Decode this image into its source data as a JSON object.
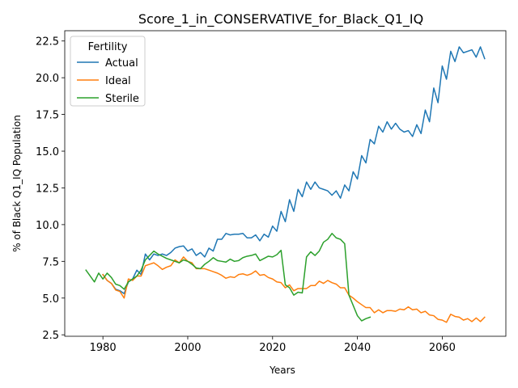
{
  "chart_data": {
    "type": "line",
    "title": "Score_1_in_CONSERVATIVE_for_Black_Q1_IQ",
    "xlabel": "Years",
    "ylabel": "% of Black Q1_IQ Population",
    "xlim": [
      1971,
      2075
    ],
    "ylim": [
      2.4,
      23.2
    ],
    "xticks": [
      1980,
      2000,
      2020,
      2040,
      2060
    ],
    "yticks": [
      2.5,
      5.0,
      7.5,
      10.0,
      12.5,
      15.0,
      17.5,
      20.0,
      22.5
    ],
    "ytick_labels": [
      "2.5",
      "5.0",
      "7.5",
      "10.0",
      "12.5",
      "15.0",
      "17.5",
      "20.0",
      "22.5"
    ],
    "grid": false,
    "legend": {
      "title": "Fertility",
      "placement": "top-left"
    },
    "series": [
      {
        "name": "Actual",
        "color": "#1f77b4",
        "points": [
          [
            1980,
            6.6
          ],
          [
            1981,
            6.2
          ],
          [
            1982,
            6.0
          ],
          [
            1983,
            5.6
          ],
          [
            1984,
            5.5
          ],
          [
            1985,
            5.3
          ],
          [
            1986,
            6.1
          ],
          [
            1987,
            6.3
          ],
          [
            1988,
            6.9
          ],
          [
            1989,
            6.6
          ],
          [
            1990,
            8.0
          ],
          [
            1991,
            7.6
          ],
          [
            1992,
            8.0
          ],
          [
            1993,
            7.9
          ],
          [
            1994,
            8.0
          ],
          [
            1995,
            7.9
          ],
          [
            1996,
            8.1
          ],
          [
            1997,
            8.4
          ],
          [
            1998,
            8.5
          ],
          [
            1999,
            8.55
          ],
          [
            2000,
            8.2
          ],
          [
            2001,
            8.35
          ],
          [
            2002,
            7.9
          ],
          [
            2003,
            8.1
          ],
          [
            2004,
            7.8
          ],
          [
            2005,
            8.4
          ],
          [
            2006,
            8.2
          ],
          [
            2007,
            9.0
          ],
          [
            2008,
            9.0
          ],
          [
            2009,
            9.4
          ],
          [
            2010,
            9.3
          ],
          [
            2011,
            9.35
          ],
          [
            2012,
            9.35
          ],
          [
            2013,
            9.4
          ],
          [
            2014,
            9.1
          ],
          [
            2015,
            9.1
          ],
          [
            2016,
            9.3
          ],
          [
            2017,
            8.9
          ],
          [
            2018,
            9.35
          ],
          [
            2019,
            9.15
          ],
          [
            2020,
            9.9
          ],
          [
            2021,
            9.55
          ],
          [
            2022,
            10.9
          ],
          [
            2023,
            10.2
          ],
          [
            2024,
            11.7
          ],
          [
            2025,
            10.9
          ],
          [
            2026,
            12.4
          ],
          [
            2027,
            11.9
          ],
          [
            2028,
            12.9
          ],
          [
            2029,
            12.4
          ],
          [
            2030,
            12.9
          ],
          [
            2031,
            12.5
          ],
          [
            2032,
            12.4
          ],
          [
            2033,
            12.3
          ],
          [
            2034,
            12.0
          ],
          [
            2035,
            12.3
          ],
          [
            2036,
            11.8
          ],
          [
            2037,
            12.7
          ],
          [
            2038,
            12.3
          ],
          [
            2039,
            13.6
          ],
          [
            2040,
            13.1
          ],
          [
            2041,
            14.7
          ],
          [
            2042,
            14.2
          ],
          [
            2043,
            15.8
          ],
          [
            2044,
            15.5
          ],
          [
            2045,
            16.7
          ],
          [
            2046,
            16.3
          ],
          [
            2047,
            17.0
          ],
          [
            2048,
            16.5
          ],
          [
            2049,
            16.9
          ],
          [
            2050,
            16.5
          ],
          [
            2051,
            16.3
          ],
          [
            2052,
            16.4
          ],
          [
            2053,
            16.0
          ],
          [
            2054,
            16.8
          ],
          [
            2055,
            16.2
          ],
          [
            2056,
            17.8
          ],
          [
            2057,
            17.0
          ],
          [
            2058,
            19.3
          ],
          [
            2059,
            18.3
          ],
          [
            2060,
            20.8
          ],
          [
            2061,
            19.9
          ],
          [
            2062,
            21.8
          ],
          [
            2063,
            21.1
          ],
          [
            2064,
            22.1
          ],
          [
            2065,
            21.7
          ],
          [
            2066,
            21.8
          ],
          [
            2067,
            21.9
          ],
          [
            2068,
            21.4
          ],
          [
            2069,
            22.1
          ],
          [
            2070,
            21.3
          ]
        ]
      },
      {
        "name": "Ideal",
        "color": "#ff7f0e",
        "points": [
          [
            1980,
            6.6
          ],
          [
            1981,
            6.2
          ],
          [
            1982,
            6.0
          ],
          [
            1983,
            5.55
          ],
          [
            1984,
            5.45
          ],
          [
            1985,
            5.0
          ],
          [
            1986,
            6.3
          ],
          [
            1987,
            6.2
          ],
          [
            1988,
            6.5
          ],
          [
            1989,
            6.5
          ],
          [
            1990,
            7.2
          ],
          [
            1991,
            7.3
          ],
          [
            1992,
            7.4
          ],
          [
            1993,
            7.2
          ],
          [
            1994,
            6.95
          ],
          [
            1995,
            7.1
          ],
          [
            1996,
            7.2
          ],
          [
            1997,
            7.6
          ],
          [
            1998,
            7.4
          ],
          [
            1999,
            7.8
          ],
          [
            2000,
            7.5
          ],
          [
            2001,
            7.4
          ],
          [
            2002,
            7.0
          ],
          [
            2003,
            7.0
          ],
          [
            2004,
            7.0
          ],
          [
            2005,
            6.9
          ],
          [
            2006,
            6.8
          ],
          [
            2007,
            6.7
          ],
          [
            2008,
            6.55
          ],
          [
            2009,
            6.35
          ],
          [
            2010,
            6.45
          ],
          [
            2011,
            6.4
          ],
          [
            2012,
            6.6
          ],
          [
            2013,
            6.65
          ],
          [
            2014,
            6.55
          ],
          [
            2015,
            6.65
          ],
          [
            2016,
            6.85
          ],
          [
            2017,
            6.55
          ],
          [
            2018,
            6.6
          ],
          [
            2019,
            6.4
          ],
          [
            2020,
            6.3
          ],
          [
            2021,
            6.1
          ],
          [
            2022,
            6.05
          ],
          [
            2023,
            5.7
          ],
          [
            2024,
            5.9
          ],
          [
            2025,
            5.5
          ],
          [
            2026,
            5.65
          ],
          [
            2027,
            5.65
          ],
          [
            2028,
            5.65
          ],
          [
            2029,
            5.85
          ],
          [
            2030,
            5.85
          ],
          [
            2031,
            6.15
          ],
          [
            2032,
            6.0
          ],
          [
            2033,
            6.2
          ],
          [
            2034,
            6.05
          ],
          [
            2035,
            5.95
          ],
          [
            2036,
            5.7
          ],
          [
            2037,
            5.7
          ],
          [
            2038,
            5.2
          ],
          [
            2039,
            5.0
          ],
          [
            2040,
            4.75
          ],
          [
            2041,
            4.55
          ],
          [
            2042,
            4.35
          ],
          [
            2043,
            4.35
          ],
          [
            2044,
            4.0
          ],
          [
            2045,
            4.2
          ],
          [
            2046,
            4.0
          ],
          [
            2047,
            4.15
          ],
          [
            2048,
            4.15
          ],
          [
            2049,
            4.1
          ],
          [
            2050,
            4.25
          ],
          [
            2051,
            4.2
          ],
          [
            2052,
            4.4
          ],
          [
            2053,
            4.2
          ],
          [
            2054,
            4.25
          ],
          [
            2055,
            4.0
          ],
          [
            2056,
            4.1
          ],
          [
            2057,
            3.85
          ],
          [
            2058,
            3.8
          ],
          [
            2059,
            3.55
          ],
          [
            2060,
            3.5
          ],
          [
            2061,
            3.35
          ],
          [
            2062,
            3.9
          ],
          [
            2063,
            3.75
          ],
          [
            2064,
            3.7
          ],
          [
            2065,
            3.5
          ],
          [
            2066,
            3.6
          ],
          [
            2067,
            3.4
          ],
          [
            2068,
            3.65
          ],
          [
            2069,
            3.4
          ],
          [
            2070,
            3.7
          ]
        ]
      },
      {
        "name": "Sterile",
        "color": "#2ca02c",
        "points": [
          [
            1976,
            6.9
          ],
          [
            1977,
            6.5
          ],
          [
            1978,
            6.1
          ],
          [
            1979,
            6.7
          ],
          [
            1980,
            6.3
          ],
          [
            1981,
            6.7
          ],
          [
            1982,
            6.4
          ],
          [
            1983,
            5.95
          ],
          [
            1984,
            5.85
          ],
          [
            1985,
            5.6
          ],
          [
            1986,
            6.1
          ],
          [
            1987,
            6.3
          ],
          [
            1988,
            6.5
          ],
          [
            1989,
            6.9
          ],
          [
            1990,
            7.6
          ],
          [
            1991,
            7.9
          ],
          [
            1992,
            8.2
          ],
          [
            1993,
            8.0
          ],
          [
            1994,
            7.85
          ],
          [
            1995,
            7.7
          ],
          [
            1996,
            7.6
          ],
          [
            1997,
            7.5
          ],
          [
            1998,
            7.4
          ],
          [
            1999,
            7.6
          ],
          [
            2000,
            7.5
          ],
          [
            2001,
            7.3
          ],
          [
            2002,
            7.05
          ],
          [
            2003,
            7.0
          ],
          [
            2004,
            7.3
          ],
          [
            2005,
            7.5
          ],
          [
            2006,
            7.75
          ],
          [
            2007,
            7.55
          ],
          [
            2008,
            7.5
          ],
          [
            2009,
            7.45
          ],
          [
            2010,
            7.65
          ],
          [
            2011,
            7.5
          ],
          [
            2012,
            7.55
          ],
          [
            2013,
            7.75
          ],
          [
            2014,
            7.85
          ],
          [
            2015,
            7.9
          ],
          [
            2016,
            8.0
          ],
          [
            2017,
            7.55
          ],
          [
            2018,
            7.7
          ],
          [
            2019,
            7.85
          ],
          [
            2020,
            7.8
          ],
          [
            2021,
            7.95
          ],
          [
            2022,
            8.25
          ],
          [
            2023,
            5.9
          ],
          [
            2024,
            5.7
          ],
          [
            2025,
            5.2
          ],
          [
            2026,
            5.4
          ],
          [
            2027,
            5.35
          ],
          [
            2028,
            7.8
          ],
          [
            2029,
            8.15
          ],
          [
            2030,
            7.9
          ],
          [
            2031,
            8.2
          ],
          [
            2032,
            8.8
          ],
          [
            2033,
            9.0
          ],
          [
            2034,
            9.4
          ],
          [
            2035,
            9.1
          ],
          [
            2036,
            9.0
          ],
          [
            2037,
            8.7
          ],
          [
            2038,
            5.2
          ],
          [
            2039,
            4.5
          ],
          [
            2040,
            3.8
          ],
          [
            2041,
            3.45
          ],
          [
            2042,
            3.6
          ],
          [
            2043,
            3.7
          ]
        ]
      }
    ]
  }
}
